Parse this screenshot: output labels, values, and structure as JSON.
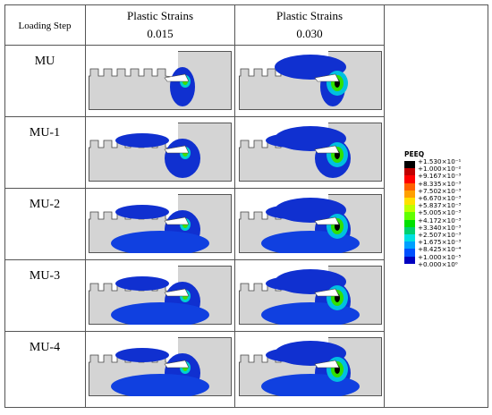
{
  "header": {
    "step": "Loading Step",
    "col1": [
      "Plastic Strains",
      "0.015"
    ],
    "col2": [
      "Plastic Strains",
      "0.030"
    ]
  },
  "rows": [
    "MU",
    "MU-1",
    "MU-2",
    "MU-3",
    "MU-4"
  ],
  "legend": {
    "title": "PEEQ",
    "labels": [
      "+1.530×10⁻¹",
      "+1.000×10⁻²",
      "+9.167×10⁻³",
      "+8.335×10⁻³",
      "+7.502×10⁻³",
      "+6.670×10⁻³",
      "+5.837×10⁻³",
      "+5.005×10⁻³",
      "+4.172×10⁻³",
      "+3.340×10⁻³",
      "+2.507×10⁻³",
      "+1.675×10⁻³",
      "+8.425×10⁻⁴",
      "+1.000×10⁻⁵",
      "+0.000×10⁰"
    ]
  }
}
